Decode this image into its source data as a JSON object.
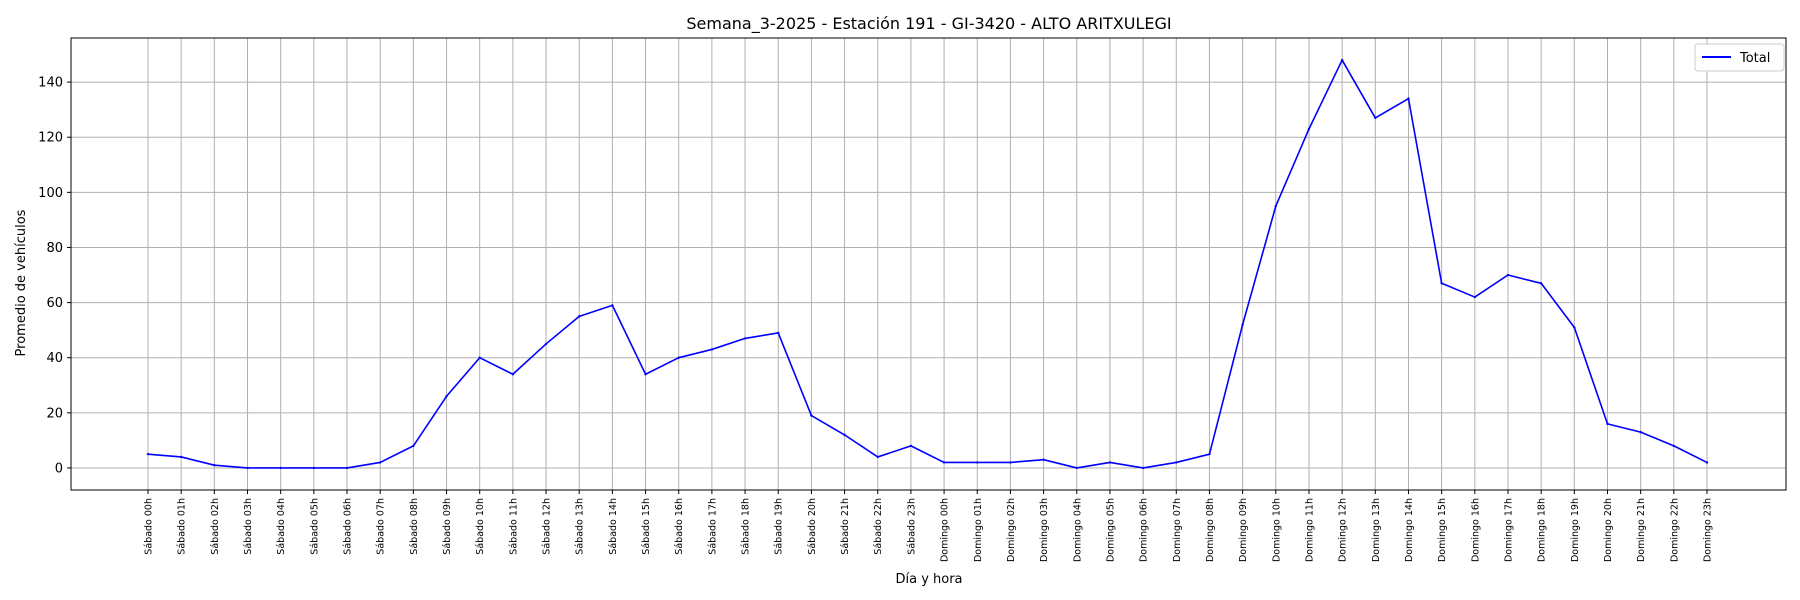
{
  "chart_data": {
    "type": "line",
    "title": "Semana_3-2025 - Estación 191 - GI-3420  - ALTO ARITXULEGI",
    "xlabel": "Día y hora",
    "ylabel": "Promedio de vehículos",
    "ylim": [
      -8,
      156
    ],
    "yticks": [
      0,
      20,
      40,
      60,
      80,
      100,
      120,
      140
    ],
    "grid": true,
    "legend": "top-right",
    "categories": [
      "Sábado 00h",
      "Sábado 01h",
      "Sábado 02h",
      "Sábado 03h",
      "Sábado 04h",
      "Sábado 05h",
      "Sábado 06h",
      "Sábado 07h",
      "Sábado 08h",
      "Sábado 09h",
      "Sábado 10h",
      "Sábado 11h",
      "Sábado 12h",
      "Sábado 13h",
      "Sábado 14h",
      "Sábado 15h",
      "Sábado 16h",
      "Sábado 17h",
      "Sábado 18h",
      "Sábado 19h",
      "Sábado 20h",
      "Sábado 21h",
      "Sábado 22h",
      "Sábado 23h",
      "Domingo 00h",
      "Domingo 01h",
      "Domingo 02h",
      "Domingo 03h",
      "Domingo 04h",
      "Domingo 05h",
      "Domingo 06h",
      "Domingo 07h",
      "Domingo 08h",
      "Domingo 09h",
      "Domingo 10h",
      "Domingo 11h",
      "Domingo 12h",
      "Domingo 13h",
      "Domingo 14h",
      "Domingo 15h",
      "Domingo 16h",
      "Domingo 17h",
      "Domingo 18h",
      "Domingo 19h",
      "Domingo 20h",
      "Domingo 21h",
      "Domingo 22h",
      "Domingo 23h"
    ],
    "series": [
      {
        "name": "Total",
        "color": "#0000ff",
        "values": [
          5,
          4,
          1,
          0,
          0,
          0,
          0,
          2,
          8,
          26,
          40,
          34,
          45,
          55,
          59,
          34,
          40,
          43,
          47,
          49,
          19,
          12,
          4,
          8,
          2,
          2,
          2,
          3,
          0,
          2,
          0,
          2,
          5,
          52,
          95,
          123,
          148,
          127,
          134,
          67,
          62,
          70,
          67,
          51,
          16,
          13,
          8,
          2
        ]
      }
    ]
  }
}
